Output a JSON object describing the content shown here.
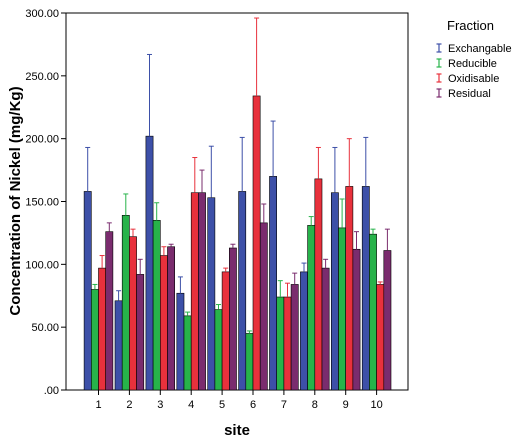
{
  "chart_data": {
    "type": "bar",
    "title": "",
    "xlabel": "site",
    "ylabel": "Concentration of Nickel (mg/Kg)",
    "ylim": [
      0,
      300
    ],
    "yticks": [
      ".00",
      "50.00",
      "100.00",
      "150.00",
      "200.00",
      "250.00",
      "300.00"
    ],
    "ytick_values": [
      0,
      50,
      100,
      150,
      200,
      250,
      300
    ],
    "categories": [
      "1",
      "2",
      "3",
      "4",
      "5",
      "6",
      "7",
      "8",
      "9",
      "10"
    ],
    "error_bars": "upper",
    "grid": false,
    "legend": {
      "title": "Fraction",
      "placement": "right"
    },
    "series": [
      {
        "name": "Exchangable",
        "color": "#3d50a8",
        "values": [
          158,
          71,
          202,
          77,
          153,
          158,
          170,
          94,
          157,
          162
        ],
        "error_upper": [
          193,
          79,
          267,
          90,
          194,
          201,
          214,
          101,
          193,
          201
        ]
      },
      {
        "name": "Reducible",
        "color": "#27b34a",
        "values": [
          80,
          139,
          135,
          59,
          64,
          45,
          74,
          131,
          129,
          124
        ],
        "error_upper": [
          84,
          156,
          149,
          62,
          68,
          47,
          87,
          138,
          152,
          128
        ]
      },
      {
        "name": "Oxidisable",
        "color": "#e8313c",
        "values": [
          97,
          122,
          107,
          157,
          94,
          234,
          74,
          168,
          162,
          84
        ],
        "error_upper": [
          107,
          128,
          114,
          185,
          97,
          296,
          85,
          193,
          200,
          86
        ]
      },
      {
        "name": "Residual",
        "color": "#7a2c6e",
        "values": [
          126,
          92,
          114,
          157,
          113,
          133,
          84,
          97,
          112,
          111
        ],
        "error_upper": [
          133,
          104,
          116,
          175,
          116,
          148,
          93,
          104,
          126,
          128
        ]
      }
    ]
  }
}
